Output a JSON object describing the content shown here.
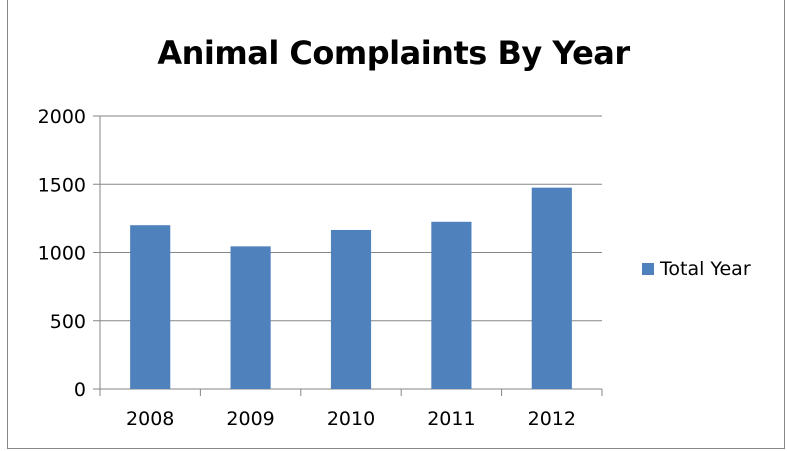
{
  "chart_data": {
    "type": "bar",
    "title": "Animal Complaints By Year",
    "xlabel": "",
    "ylabel": "",
    "categories": [
      "2008",
      "2009",
      "2010",
      "2011",
      "2012"
    ],
    "series": [
      {
        "name": "Total Year",
        "values": [
          1200,
          1045,
          1165,
          1225,
          1475
        ],
        "color": "#4f81bd"
      }
    ],
    "ylim": [
      0,
      2000
    ],
    "yticks": [
      0,
      500,
      1000,
      1500,
      2000
    ],
    "grid": true,
    "legend_position": "right"
  }
}
